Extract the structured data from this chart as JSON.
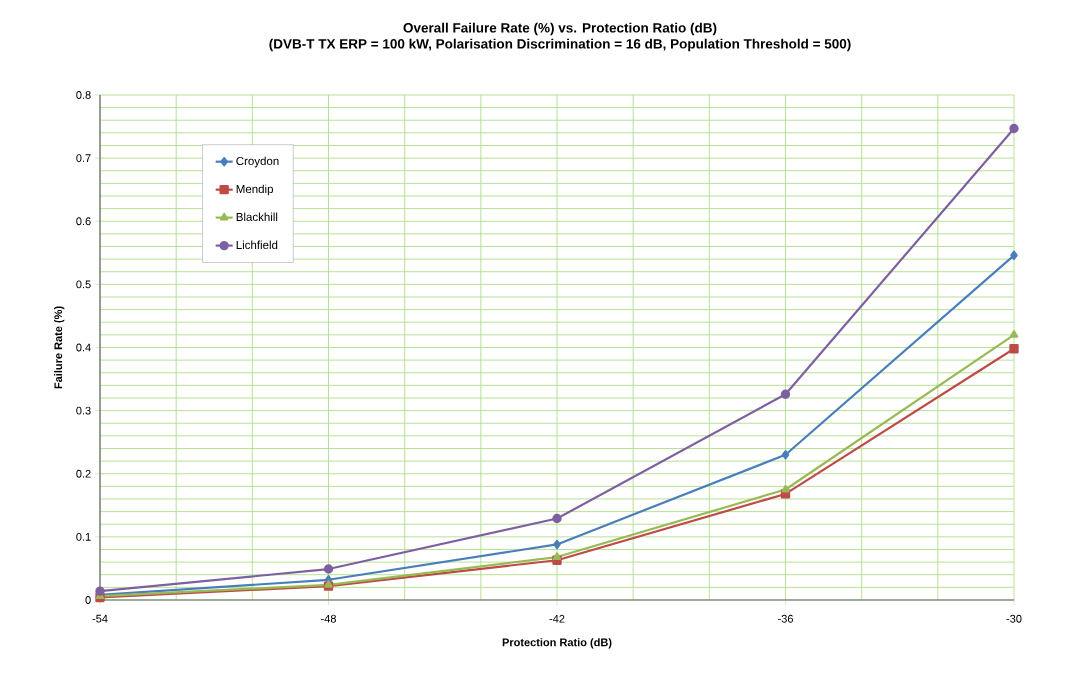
{
  "chart_data": {
    "type": "line",
    "title": "Overall Failure Rate (%) vs. Protection Ratio (dB)",
    "subtitle": "(DVB-T TX ERP = 100 kW, Polarisation Discrimination = 16 dB, Population Threshold = 500)",
    "xlabel": "Protection Ratio (dB)",
    "ylabel": "Failure Rate (%)",
    "x": [
      -54,
      -48,
      -42,
      -36,
      -30
    ],
    "series": [
      {
        "name": "Croydon",
        "color": "#4a7ebb",
        "marker": "diamond",
        "values": [
          0.008,
          0.032,
          0.088,
          0.23,
          0.546
        ]
      },
      {
        "name": "Mendip",
        "color": "#be4b48",
        "marker": "square",
        "values": [
          0.004,
          0.022,
          0.063,
          0.168,
          0.398
        ]
      },
      {
        "name": "Blackhill",
        "color": "#98b954",
        "marker": "triangle",
        "values": [
          0.006,
          0.024,
          0.068,
          0.175,
          0.42
        ]
      },
      {
        "name": "Lichfield",
        "color": "#7d60a0",
        "marker": "circle",
        "values": [
          0.014,
          0.049,
          0.129,
          0.326,
          0.747
        ]
      }
    ],
    "xlim": [
      -54,
      -30
    ],
    "xticks": [
      -54,
      -48,
      -42,
      -36,
      -30
    ],
    "ylim": [
      0,
      0.8
    ],
    "yticks": [
      0,
      0.1,
      0.2,
      0.3,
      0.4,
      0.5,
      0.6,
      0.7,
      0.8
    ],
    "grid": true,
    "legend": "top left",
    "line_style": "solid"
  }
}
